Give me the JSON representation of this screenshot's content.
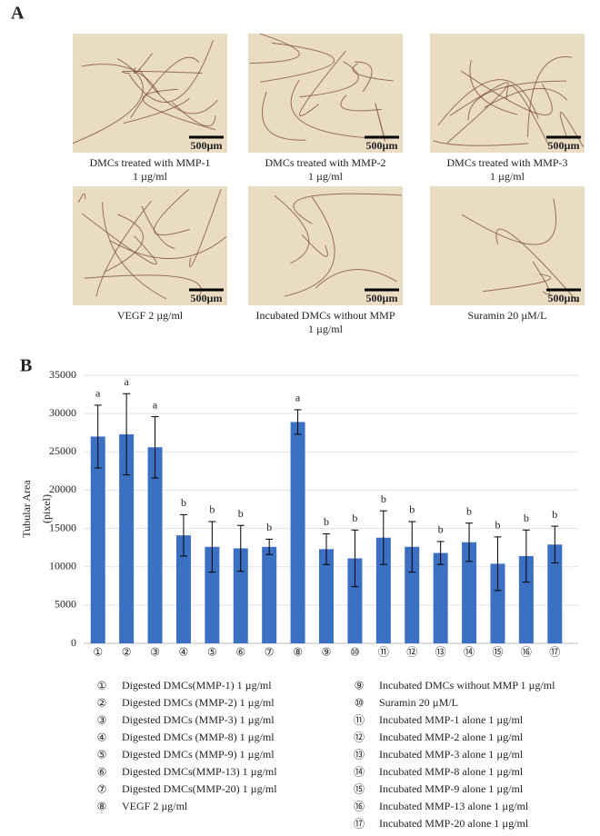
{
  "panel_a": {
    "label": "A",
    "images": [
      {
        "scale": "500µm",
        "caption": [
          "DMCs treated with MMP-1",
          "1 µg/ml"
        ]
      },
      {
        "scale": "500µm",
        "caption": [
          "DMCs treated with MMP-2",
          "1 µg/ml"
        ]
      },
      {
        "scale": "500µm",
        "caption": [
          "DMCs treated with MMP-3",
          "1 µg/ml"
        ]
      },
      {
        "scale": "500µm",
        "caption": [
          "VEGF 2 µg/ml"
        ]
      },
      {
        "scale": "500µm",
        "caption": [
          "Incubated DMCs without MMP",
          "1 µg/ml"
        ]
      },
      {
        "scale": "500µm",
        "caption": [
          "Suramin 20 µM/L"
        ]
      }
    ]
  },
  "panel_b": {
    "label": "B"
  },
  "chart_data": {
    "type": "bar",
    "y_label": [
      "Tubular Area",
      "(pixel)"
    ],
    "categories": [
      "①",
      "②",
      "③",
      "④",
      "⑤",
      "⑥",
      "⑦",
      "⑧",
      "⑨",
      "⑩",
      "⑪",
      "⑫",
      "⑬",
      "⑭",
      "⑮",
      "⑯",
      "⑰"
    ],
    "values": [
      27000,
      27300,
      25600,
      14100,
      12600,
      12400,
      12600,
      28900,
      12300,
      11100,
      13800,
      12600,
      11800,
      13200,
      10400,
      11400,
      12900
    ],
    "errors": [
      4100,
      5300,
      4000,
      2700,
      3300,
      3000,
      1000,
      1600,
      2000,
      3700,
      3500,
      3300,
      1500,
      2500,
      3500,
      3400,
      2400
    ],
    "annotations": [
      "a",
      "a",
      "a",
      "b",
      "b",
      "b",
      "b",
      "a",
      "b",
      "b",
      "b",
      "b",
      "b",
      "b",
      "b",
      "b",
      "b"
    ],
    "color": "#3b70c2",
    "ylim": [
      0,
      35000
    ],
    "yticks": [
      0,
      5000,
      10000,
      15000,
      20000,
      25000,
      30000,
      35000
    ],
    "grid": true,
    "legend": [
      "Digested DMCs(MMP-1) 1 µg/ml",
      "Digested  DMCs (MMP-2) 1 µg/ml",
      "Digested DMCs (MMP-3) 1 µg/ml",
      "Digested DMCs (MMP-8) 1 µg/ml",
      "Digested DMCs (MMP-9) 1 µg/ml",
      "Digested DMCs(MMP-13) 1 µg/ml",
      "Digested DMCs(MMP-20) 1 µg/ml",
      "VEGF 2 µg/ml",
      "Incubated DMCs without MMP 1 µg/ml",
      "Suramin 20 µM/L",
      "Incubated MMP-1 alone 1 µg/ml",
      "Incubated MMP-2 alone 1 µg/ml",
      "Incubated MMP-3 alone 1 µg/ml",
      "Incubated MMP-8 alone 1 µg/ml",
      "Incubated MMP-9 alone 1 µg/ml",
      "Incubated MMP-13 alone 1 µg/ml",
      "Incubated MMP-20 alone 1 µg/ml"
    ]
  }
}
